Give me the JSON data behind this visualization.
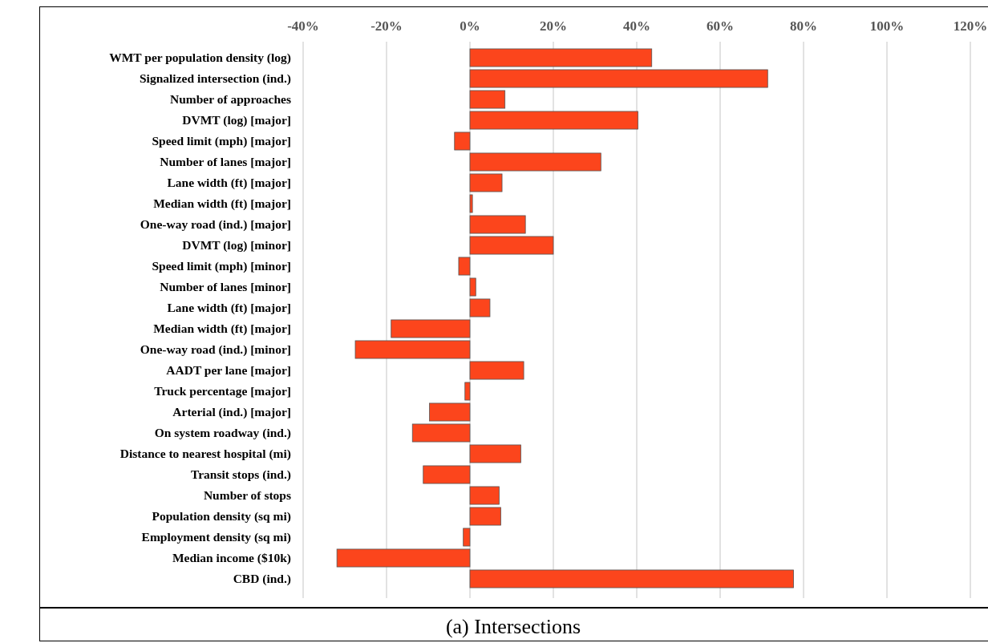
{
  "chart_data": {
    "type": "bar",
    "orientation": "horizontal",
    "title": "(a) Intersections",
    "categories": [
      "WMT per population density (log)",
      "Signalized intersection (ind.)",
      "Number of approaches",
      "DVMT (log) [major]",
      "Speed limit (mph) [major]",
      "Number of lanes [major]",
      "Lane width (ft) [major]",
      "Median width (ft) [major]",
      "One-way road (ind.) [major]",
      "DVMT (log) [minor]",
      "Speed limit (mph) [minor]",
      "Number of lanes [minor]",
      "Lane width (ft) [major]",
      "Median width (ft) [major]",
      "One-way road (ind.) [minor]",
      "AADT per lane [major]",
      "Truck percentage [major]",
      "Arterial (ind.) [major]",
      "On system roadway (ind.)",
      "Distance to nearest hospital (mi)",
      "Transit stops (ind.)",
      "Number of stops",
      "Population density (sq mi)",
      "Employment density (sq mi)",
      "Median income ($10k)",
      "CBD (ind.)"
    ],
    "series": [
      {
        "color": "#fc451c",
        "values": [
          43.6,
          71.4,
          8.4,
          40.3,
          -3.7,
          31.4,
          7.7,
          0.6,
          13.3,
          20.0,
          -2.7,
          1.4,
          4.8,
          -18.9,
          -27.5,
          12.9,
          -1.2,
          -9.7,
          -13.8,
          12.2,
          -11.2,
          7.0,
          7.4,
          -1.6,
          -31.9,
          77.6
        ]
      }
    ],
    "xlim": [
      -40,
      120
    ],
    "xticks": [
      {
        "value": -40,
        "label": "-40%"
      },
      {
        "value": -20,
        "label": "-20%"
      },
      {
        "value": 0,
        "label": "0%"
      },
      {
        "value": 20,
        "label": "20%"
      },
      {
        "value": 40,
        "label": "40%"
      },
      {
        "value": 60,
        "label": "60%"
      },
      {
        "value": 80,
        "label": "80%"
      },
      {
        "value": 100,
        "label": "100%"
      },
      {
        "value": 120,
        "label": "120%"
      }
    ],
    "grid": "x"
  }
}
